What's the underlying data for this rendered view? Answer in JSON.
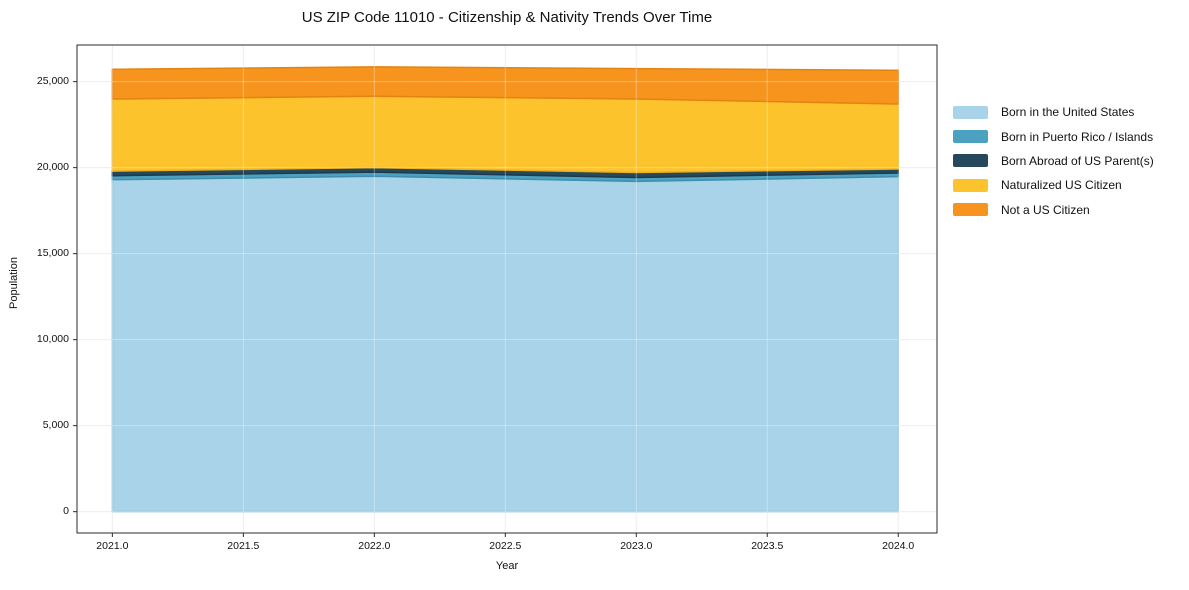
{
  "title": "US ZIP Code 11010 - Citizenship & Nativity Trends Over Time",
  "chart_data": {
    "type": "area",
    "stacked": true,
    "title": "US ZIP Code 11010 - Citizenship & Nativity Trends Over Time",
    "xlabel": "Year",
    "ylabel": "Population",
    "grid": true,
    "legend_position": "right-outside",
    "background": "#ffffff",
    "axis_color": "#2b2b2b",
    "gridline_color": "#e7e7e7",
    "xlim": [
      2020.865,
      2024.148
    ],
    "ylim": [
      -1240,
      27130
    ],
    "x": [
      2021,
      2022,
      2023,
      2024
    ],
    "x_ticks": [
      {
        "v": 2021.0,
        "label": "2021.0"
      },
      {
        "v": 2021.5,
        "label": "2021.5"
      },
      {
        "v": 2022.0,
        "label": "2022.0"
      },
      {
        "v": 2022.5,
        "label": "2022.5"
      },
      {
        "v": 2023.0,
        "label": "2023.0"
      },
      {
        "v": 2023.5,
        "label": "2023.5"
      },
      {
        "v": 2024.0,
        "label": "2024.0"
      }
    ],
    "y_ticks": [
      {
        "v": 0,
        "label": "0"
      },
      {
        "v": 5000,
        "label": "5,000"
      },
      {
        "v": 10000,
        "label": "10,000"
      },
      {
        "v": 15000,
        "label": "15,000"
      },
      {
        "v": 20000,
        "label": "20,000"
      },
      {
        "v": 25000,
        "label": "25,000"
      }
    ],
    "series": [
      {
        "name": "Born in the United States",
        "color": "#a8d3e8",
        "edge_color": "#8fc3dc",
        "values": [
          19300,
          19500,
          19200,
          19480
        ]
      },
      {
        "name": "Born in Puerto Rico / Islands",
        "color": "#4aa2c0",
        "edge_color": "#3e8fab",
        "values": [
          230,
          240,
          230,
          210
        ]
      },
      {
        "name": "Born Abroad of US Parent(s)",
        "color": "#26485c",
        "edge_color": "#1d3a4b",
        "values": [
          270,
          260,
          290,
          230
        ]
      },
      {
        "name": "Naturalized US Citizen",
        "color": "#fdc32d",
        "edge_color": "#eeb11b",
        "values": [
          4190,
          4150,
          4270,
          3780
        ]
      },
      {
        "name": "Not a US Citizen",
        "color": "#f6941e",
        "edge_color": "#e48312",
        "values": [
          1730,
          1710,
          1770,
          1960
        ]
      }
    ],
    "totals_by_year": [
      25720,
      25860,
      25760,
      25660
    ]
  }
}
